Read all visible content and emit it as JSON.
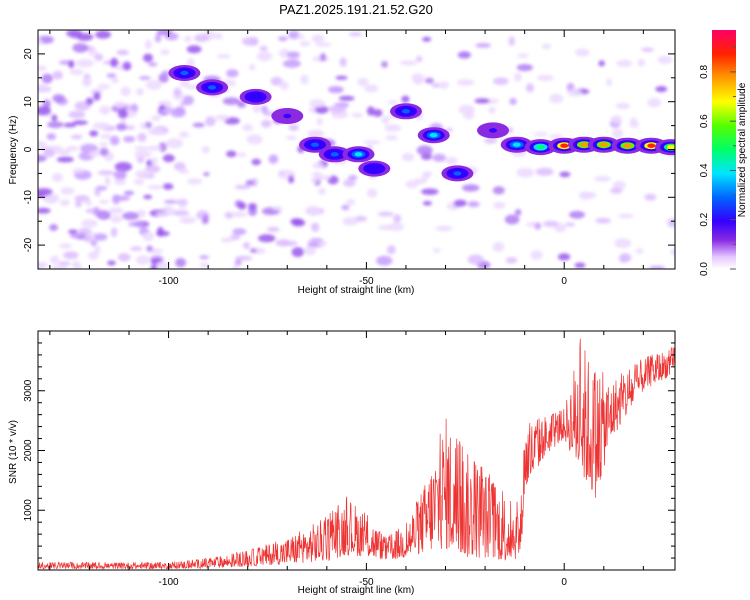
{
  "title": "PAZ1.2025.191.21.52.G20",
  "chart_data": [
    {
      "type": "heatmap",
      "xlabel": "Height of straight line (km)",
      "ylabel": "Frequency (Hz)",
      "xlim": [
        -133,
        28
      ],
      "ylim": [
        -25,
        25
      ],
      "xticks": [
        -100,
        -50,
        0
      ],
      "yticks": [
        -20,
        -10,
        0,
        10,
        20
      ],
      "colorbar": {
        "label": "Normalized spectral amplitude",
        "ticks": [
          0.0,
          0.2,
          0.4,
          0.6,
          0.8
        ],
        "range": [
          0,
          0.97
        ]
      },
      "ridge": [
        {
          "x": -96,
          "y": 16,
          "amp": 0.35
        },
        {
          "x": -89,
          "y": 13,
          "amp": 0.3
        },
        {
          "x": -78,
          "y": 11,
          "amp": 0.25
        },
        {
          "x": -70,
          "y": 7,
          "amp": 0.2
        },
        {
          "x": -63,
          "y": 1,
          "amp": 0.3
        },
        {
          "x": -58,
          "y": -1,
          "amp": 0.35
        },
        {
          "x": -52,
          "y": -1,
          "amp": 0.4
        },
        {
          "x": -48,
          "y": -4,
          "amp": 0.25
        },
        {
          "x": -40,
          "y": 8,
          "amp": 0.3
        },
        {
          "x": -33,
          "y": 3,
          "amp": 0.4
        },
        {
          "x": -27,
          "y": -5,
          "amp": 0.3
        },
        {
          "x": -18,
          "y": 4,
          "amp": 0.2
        },
        {
          "x": -12,
          "y": 1,
          "amp": 0.45
        },
        {
          "x": -6,
          "y": 0.5,
          "amp": 0.55
        },
        {
          "x": 0,
          "y": 0.8,
          "amp": 0.9
        },
        {
          "x": 5,
          "y": 1,
          "amp": 0.8
        },
        {
          "x": 10,
          "y": 1,
          "amp": 0.85
        },
        {
          "x": 16,
          "y": 0.8,
          "amp": 0.85
        },
        {
          "x": 22,
          "y": 0.8,
          "amp": 0.95
        },
        {
          "x": 27,
          "y": 0.5,
          "amp": 0.7
        }
      ]
    },
    {
      "type": "line",
      "xlabel": "Height of straight line (km)",
      "ylabel": "SNR (10 * v/v)",
      "xlim": [
        -133,
        28
      ],
      "ylim": [
        0,
        4000
      ],
      "xticks": [
        -100,
        -50,
        0
      ],
      "yticks": [
        1000,
        2000,
        3000
      ],
      "color": "#ee3333",
      "envelope": [
        {
          "x": -133,
          "lo": 20,
          "hi": 130
        },
        {
          "x": -100,
          "lo": 20,
          "hi": 130
        },
        {
          "x": -90,
          "lo": 30,
          "hi": 200
        },
        {
          "x": -80,
          "lo": 60,
          "hi": 330
        },
        {
          "x": -70,
          "lo": 100,
          "hi": 550
        },
        {
          "x": -60,
          "lo": 150,
          "hi": 900
        },
        {
          "x": -55,
          "lo": 250,
          "hi": 1250
        },
        {
          "x": -50,
          "lo": 220,
          "hi": 950
        },
        {
          "x": -45,
          "lo": 160,
          "hi": 550
        },
        {
          "x": -40,
          "lo": 200,
          "hi": 800
        },
        {
          "x": -35,
          "lo": 300,
          "hi": 1500
        },
        {
          "x": -30,
          "lo": 350,
          "hi": 2600
        },
        {
          "x": -25,
          "lo": 200,
          "hi": 2000
        },
        {
          "x": -20,
          "lo": 200,
          "hi": 1700
        },
        {
          "x": -15,
          "lo": 150,
          "hi": 1300
        },
        {
          "x": -11,
          "lo": 200,
          "hi": 1100
        },
        {
          "x": -10,
          "lo": 1300,
          "hi": 2500
        },
        {
          "x": -5,
          "lo": 1900,
          "hi": 2600
        },
        {
          "x": 0,
          "lo": 2200,
          "hi": 2700
        },
        {
          "x": 4,
          "lo": 1600,
          "hi": 3900
        },
        {
          "x": 8,
          "lo": 1200,
          "hi": 3400
        },
        {
          "x": 12,
          "lo": 2200,
          "hi": 3200
        },
        {
          "x": 20,
          "lo": 3000,
          "hi": 3550
        },
        {
          "x": 28,
          "lo": 3300,
          "hi": 3750
        }
      ]
    }
  ]
}
